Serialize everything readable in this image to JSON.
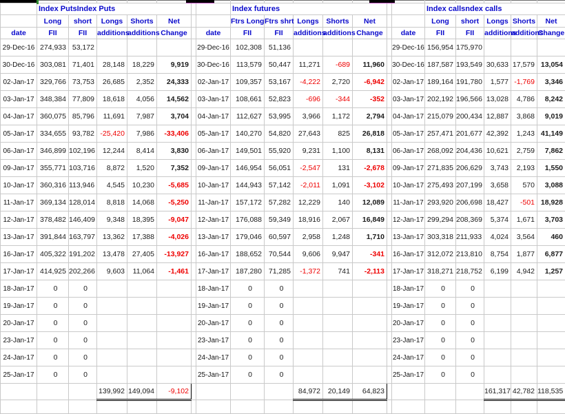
{
  "colors": {
    "header_text": "#0a0acc",
    "negative": "#ee0000",
    "grid_line": "#c9c9c9",
    "totals_border": "#000000",
    "top_strip": "#000000",
    "magenta_line": "#c050c0",
    "green_tick": "#2e8b2e"
  },
  "dates": [
    "29-Dec-16",
    "30-Dec-16",
    "02-Jan-17",
    "03-Jan-17",
    "04-Jan-17",
    "05-Jan-17",
    "06-Jan-17",
    "09-Jan-17",
    "10-Jan-17",
    "11-Jan-17",
    "12-Jan-17",
    "13-Jan-17",
    "16-Jan-17",
    "17-Jan-17",
    "18-Jan-17",
    "19-Jan-17",
    "20-Jan-17",
    "23-Jan-17",
    "24-Jan-17",
    "25-Jan-17"
  ],
  "tables": [
    {
      "name": "index-puts",
      "title": "Index PutsIndex Puts",
      "header_row1": [
        "",
        "Long",
        "short",
        "Longs",
        "Shorts",
        "Net"
      ],
      "header_row2": [
        "date",
        "FII",
        "FII",
        "additions",
        "additions",
        "Change"
      ],
      "rows": [
        [
          "274,933",
          "53,172",
          "",
          "",
          ""
        ],
        [
          "303,081",
          "71,401",
          "28,148",
          "18,229",
          "9,919"
        ],
        [
          "329,766",
          "73,753",
          "26,685",
          "2,352",
          "24,333"
        ],
        [
          "348,384",
          "77,809",
          "18,618",
          "4,056",
          "14,562"
        ],
        [
          "360,075",
          "85,796",
          "11,691",
          "7,987",
          "3,704"
        ],
        [
          "334,655",
          "93,782",
          "-25,420",
          "7,986",
          "-33,406"
        ],
        [
          "346,899",
          "102,196",
          "12,244",
          "8,414",
          "3,830"
        ],
        [
          "355,771",
          "103,716",
          "8,872",
          "1,520",
          "7,352"
        ],
        [
          "360,316",
          "113,946",
          "4,545",
          "10,230",
          "-5,685"
        ],
        [
          "369,134",
          "128,014",
          "8,818",
          "14,068",
          "-5,250"
        ],
        [
          "378,482",
          "146,409",
          "9,348",
          "18,395",
          "-9,047"
        ],
        [
          "391,844",
          "163,797",
          "13,362",
          "17,388",
          "-4,026"
        ],
        [
          "405,322",
          "191,202",
          "13,478",
          "27,405",
          "-13,927"
        ],
        [
          "414,925",
          "202,266",
          "9,603",
          "11,064",
          "-1,461"
        ],
        [
          "0",
          "0",
          "",
          "",
          ""
        ],
        [
          "0",
          "0",
          "",
          "",
          ""
        ],
        [
          "0",
          "0",
          "",
          "",
          ""
        ],
        [
          "0",
          "0",
          "",
          "",
          ""
        ],
        [
          "0",
          "0",
          "",
          "",
          ""
        ],
        [
          "0",
          "0",
          "",
          "",
          ""
        ]
      ],
      "totals": [
        "139,992",
        "149,094",
        "-9,102"
      ]
    },
    {
      "name": "index-futures",
      "title": "Index futures",
      "header_row1": [
        "",
        "Ftrs Long",
        "Ftrs shrt",
        "Longs",
        "Shorts",
        "Net"
      ],
      "header_row2": [
        "date",
        "FII",
        "FII",
        "additions",
        "additions",
        "Change"
      ],
      "rows": [
        [
          "102,308",
          "51,136",
          "",
          "",
          ""
        ],
        [
          "113,579",
          "50,447",
          "11,271",
          "-689",
          "11,960"
        ],
        [
          "109,357",
          "53,167",
          "-4,222",
          "2,720",
          "-6,942"
        ],
        [
          "108,661",
          "52,823",
          "-696",
          "-344",
          "-352"
        ],
        [
          "112,627",
          "53,995",
          "3,966",
          "1,172",
          "2,794"
        ],
        [
          "140,270",
          "54,820",
          "27,643",
          "825",
          "26,818"
        ],
        [
          "149,501",
          "55,920",
          "9,231",
          "1,100",
          "8,131"
        ],
        [
          "146,954",
          "56,051",
          "-2,547",
          "131",
          "-2,678"
        ],
        [
          "144,943",
          "57,142",
          "-2,011",
          "1,091",
          "-3,102"
        ],
        [
          "157,172",
          "57,282",
          "12,229",
          "140",
          "12,089"
        ],
        [
          "176,088",
          "59,349",
          "18,916",
          "2,067",
          "16,849"
        ],
        [
          "179,046",
          "60,597",
          "2,958",
          "1,248",
          "1,710"
        ],
        [
          "188,652",
          "70,544",
          "9,606",
          "9,947",
          "-341"
        ],
        [
          "187,280",
          "71,285",
          "-1,372",
          "741",
          "-2,113"
        ],
        [
          "0",
          "0",
          "",
          "",
          ""
        ],
        [
          "0",
          "0",
          "",
          "",
          ""
        ],
        [
          "0",
          "0",
          "",
          "",
          ""
        ],
        [
          "0",
          "0",
          "",
          "",
          ""
        ],
        [
          "0",
          "0",
          "",
          "",
          ""
        ],
        [
          "0",
          "0",
          "",
          "",
          ""
        ]
      ],
      "totals": [
        "84,972",
        "20,149",
        "64,823"
      ]
    },
    {
      "name": "index-calls",
      "title": "Index callsndex calls",
      "header_row1": [
        "",
        "Long",
        "short",
        "Longs",
        "Shorts",
        "Net"
      ],
      "header_row2": [
        "date",
        "FII",
        "FII",
        "additions",
        "additions",
        "Change"
      ],
      "rows": [
        [
          "156,954",
          "175,970",
          "",
          "",
          ""
        ],
        [
          "187,587",
          "193,549",
          "30,633",
          "17,579",
          "13,054"
        ],
        [
          "189,164",
          "191,780",
          "1,577",
          "-1,769",
          "3,346"
        ],
        [
          "202,192",
          "196,566",
          "13,028",
          "4,786",
          "8,242"
        ],
        [
          "215,079",
          "200,434",
          "12,887",
          "3,868",
          "9,019"
        ],
        [
          "257,471",
          "201,677",
          "42,392",
          "1,243",
          "41,149"
        ],
        [
          "268,092",
          "204,436",
          "10,621",
          "2,759",
          "7,862"
        ],
        [
          "271,835",
          "206,629",
          "3,743",
          "2,193",
          "1,550"
        ],
        [
          "275,493",
          "207,199",
          "3,658",
          "570",
          "3,088"
        ],
        [
          "293,920",
          "206,698",
          "18,427",
          "-501",
          "18,928"
        ],
        [
          "299,294",
          "208,369",
          "5,374",
          "1,671",
          "3,703"
        ],
        [
          "303,318",
          "211,933",
          "4,024",
          "3,564",
          "460"
        ],
        [
          "312,072",
          "213,810",
          "8,754",
          "1,877",
          "6,877"
        ],
        [
          "318,271",
          "218,752",
          "6,199",
          "4,942",
          "1,257"
        ],
        [
          "0",
          "0",
          "",
          "",
          ""
        ],
        [
          "0",
          "0",
          "",
          "",
          ""
        ],
        [
          "0",
          "0",
          "",
          "",
          ""
        ],
        [
          "0",
          "0",
          "",
          "",
          ""
        ],
        [
          "0",
          "0",
          "",
          "",
          ""
        ],
        [
          "0",
          "0",
          "",
          "",
          ""
        ]
      ],
      "totals": [
        "161,317",
        "42,782",
        "118,535"
      ]
    }
  ]
}
